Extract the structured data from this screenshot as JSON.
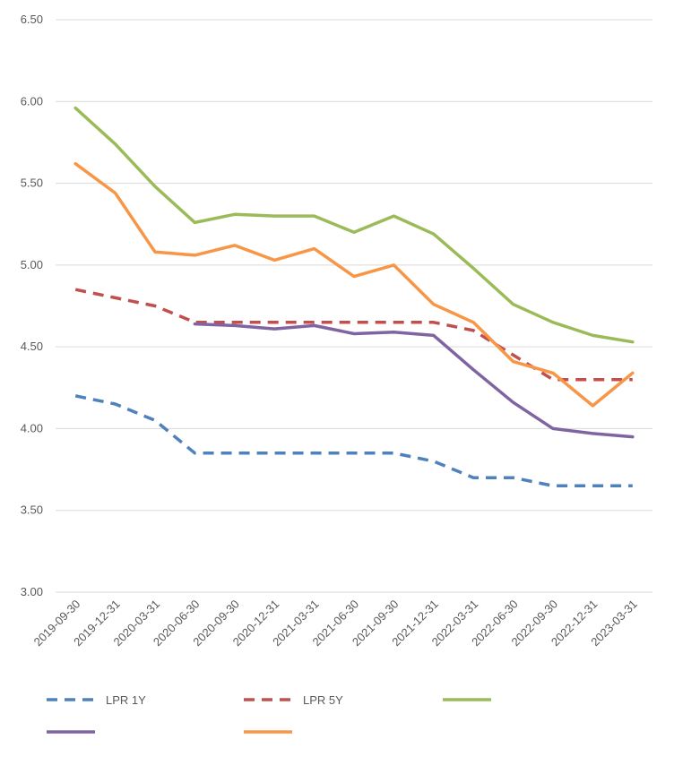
{
  "chart_data": {
    "type": "line",
    "title": "",
    "xlabel": "",
    "ylabel": "",
    "ylim": [
      3.0,
      6.5
    ],
    "ystep": 0.5,
    "grid": true,
    "legend_position": "bottom",
    "categories": [
      "2019-09-30",
      "2019-12-31",
      "2020-03-31",
      "2020-06-30",
      "2020-09-30",
      "2020-12-31",
      "2021-03-31",
      "2021-06-30",
      "2021-09-30",
      "2021-12-31",
      "2022-03-31",
      "2022-06-30",
      "2022-09-30",
      "2022-12-31",
      "2023-03-31"
    ],
    "series": [
      {
        "name": "LPR 1Y",
        "color": "#4f81bd",
        "dashed": true,
        "values": [
          4.2,
          4.15,
          4.05,
          3.85,
          3.85,
          3.85,
          3.85,
          3.85,
          3.85,
          3.8,
          3.7,
          3.7,
          3.65,
          3.65,
          3.65
        ]
      },
      {
        "name": "LPR 5Y",
        "color": "#c0504d",
        "dashed": true,
        "values": [
          4.85,
          4.8,
          4.75,
          4.65,
          4.65,
          4.65,
          4.65,
          4.65,
          4.65,
          4.65,
          4.6,
          4.45,
          4.3,
          4.3,
          4.3
        ]
      },
      {
        "name": "",
        "color": "#9bbb59",
        "dashed": false,
        "values": [
          5.96,
          5.74,
          5.48,
          5.26,
          5.31,
          5.3,
          5.3,
          5.2,
          5.3,
          5.19,
          4.98,
          4.76,
          4.65,
          4.57,
          4.53
        ]
      },
      {
        "name": "",
        "color": "#8064a2",
        "dashed": false,
        "values": [
          null,
          null,
          null,
          4.64,
          4.63,
          4.61,
          4.63,
          4.58,
          4.59,
          4.57,
          4.36,
          4.16,
          4.0,
          3.97,
          3.95
        ]
      },
      {
        "name": "",
        "color": "#f79646",
        "dashed": false,
        "values": [
          5.62,
          5.44,
          5.08,
          5.06,
          5.12,
          5.03,
          5.1,
          4.93,
          5.0,
          4.76,
          4.65,
          4.41,
          4.34,
          4.14,
          4.34
        ]
      }
    ]
  }
}
